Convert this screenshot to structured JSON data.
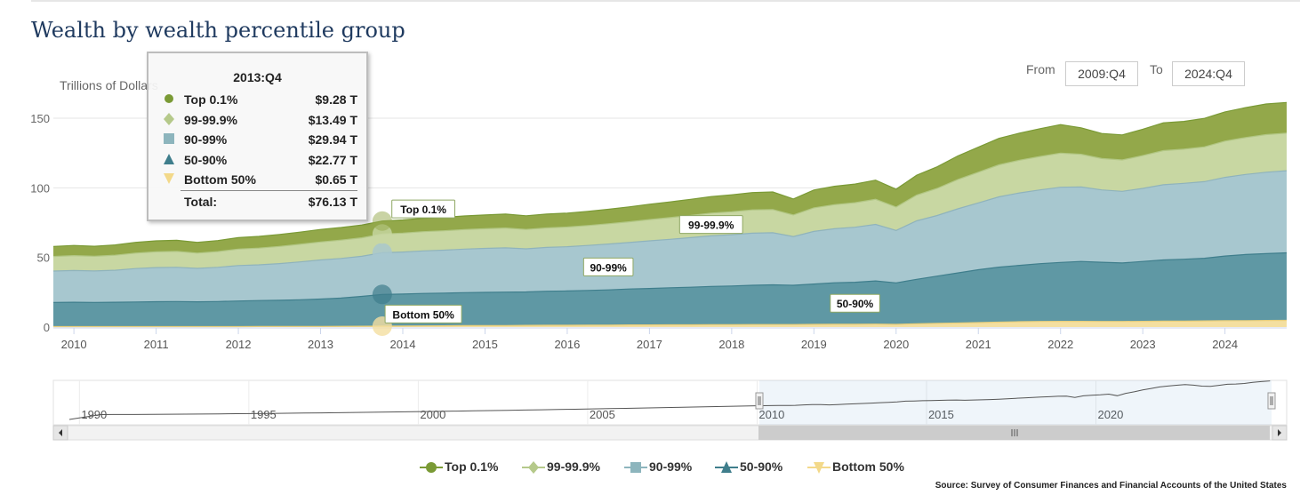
{
  "title": "Wealth by wealth percentile group",
  "range_selector": {
    "from_label": "From",
    "from_value": "2009:Q4",
    "to_label": "To",
    "to_value": "2024:Q4"
  },
  "tooltip": {
    "header": "2013:Q4",
    "rows": [
      {
        "name": "Top 0.1%",
        "value": "$9.28 T"
      },
      {
        "name": "99-99.9%",
        "value": "$13.49 T"
      },
      {
        "name": "90-99%",
        "value": "$29.94 T"
      },
      {
        "name": "50-90%",
        "value": "$22.77 T"
      },
      {
        "name": "Bottom 50%",
        "value": "$0.65 T"
      }
    ],
    "total_label": "Total:",
    "total_value": "$76.13 T"
  },
  "legend": [
    "Top 0.1%",
    "99-99.9%",
    "90-99%",
    "50-90%",
    "Bottom 50%"
  ],
  "source": "Source: Survey of Consumer Finances and Financial Accounts of the United States",
  "colors": {
    "top01": "#93a84a",
    "p99_999": "#c8d7a2",
    "p90_99": "#a7c7cf",
    "p50_90": "#5f98a4",
    "bottom50": "#f4dfa0"
  },
  "chart_data": {
    "type": "area",
    "stacked": true,
    "ylabel": "Trillions of Dollars",
    "ylim": [
      0,
      160
    ],
    "yticks": [
      0,
      50,
      100,
      150
    ],
    "xlim": [
      2009.75,
      2024.75
    ],
    "xticks": [
      "2010",
      "2011",
      "2012",
      "2013",
      "2014",
      "2015",
      "2016",
      "2017",
      "2018",
      "2019",
      "2020",
      "2021",
      "2022",
      "2023",
      "2024"
    ],
    "x": [
      "2009:Q4",
      "2010:Q1",
      "2010:Q2",
      "2010:Q3",
      "2010:Q4",
      "2011:Q1",
      "2011:Q2",
      "2011:Q3",
      "2011:Q4",
      "2012:Q1",
      "2012:Q2",
      "2012:Q3",
      "2012:Q4",
      "2013:Q1",
      "2013:Q2",
      "2013:Q3",
      "2013:Q4",
      "2014:Q1",
      "2014:Q2",
      "2014:Q3",
      "2014:Q4",
      "2015:Q1",
      "2015:Q2",
      "2015:Q3",
      "2015:Q4",
      "2016:Q1",
      "2016:Q2",
      "2016:Q3",
      "2016:Q4",
      "2017:Q1",
      "2017:Q2",
      "2017:Q3",
      "2017:Q4",
      "2018:Q1",
      "2018:Q2",
      "2018:Q3",
      "2018:Q4",
      "2019:Q1",
      "2019:Q2",
      "2019:Q3",
      "2019:Q4",
      "2020:Q1",
      "2020:Q2",
      "2020:Q3",
      "2020:Q4",
      "2021:Q1",
      "2021:Q2",
      "2021:Q3",
      "2021:Q4",
      "2022:Q1",
      "2022:Q2",
      "2022:Q3",
      "2022:Q4",
      "2023:Q1",
      "2023:Q2",
      "2023:Q3",
      "2023:Q4",
      "2024:Q1",
      "2024:Q2",
      "2024:Q3",
      "2024:Q4"
    ],
    "series": [
      {
        "name": "Bottom 50%",
        "values": [
          0.3,
          0.3,
          0.3,
          0.3,
          0.3,
          0.3,
          0.3,
          0.3,
          0.3,
          0.3,
          0.4,
          0.4,
          0.4,
          0.4,
          0.5,
          0.6,
          0.65,
          0.7,
          0.8,
          0.9,
          1.0,
          1.1,
          1.1,
          1.2,
          1.3,
          1.3,
          1.4,
          1.4,
          1.5,
          1.5,
          1.6,
          1.6,
          1.7,
          1.7,
          1.8,
          1.8,
          1.8,
          1.9,
          2.0,
          2.0,
          2.1,
          1.9,
          2.3,
          2.6,
          2.9,
          3.2,
          3.5,
          3.8,
          4.0,
          4.1,
          4.1,
          4.0,
          4.0,
          4.1,
          4.2,
          4.2,
          4.4,
          4.5,
          4.6,
          4.7,
          4.8
        ]
      },
      {
        "name": "50-90%",
        "values": [
          17.4,
          17.5,
          17.4,
          17.5,
          17.7,
          17.9,
          18.0,
          17.8,
          18.0,
          18.4,
          18.6,
          18.8,
          19.2,
          19.7,
          20.3,
          21.4,
          22.77,
          23.0,
          23.3,
          23.5,
          23.7,
          23.8,
          24.0,
          24.0,
          24.4,
          24.6,
          24.9,
          25.3,
          25.8,
          26.2,
          26.6,
          27.0,
          27.5,
          27.8,
          28.2,
          28.5,
          28.2,
          29.0,
          29.8,
          30.2,
          31.0,
          29.8,
          32.0,
          34.0,
          36.0,
          38.0,
          39.5,
          40.5,
          41.5,
          42.3,
          43.0,
          42.5,
          42.0,
          43.0,
          44.0,
          44.5,
          45.0,
          46.5,
          47.5,
          48.0,
          48.5
        ]
      },
      {
        "name": "90-99%",
        "values": [
          22.5,
          22.8,
          22.6,
          23.0,
          24.0,
          24.5,
          24.6,
          24.0,
          24.6,
          25.5,
          25.7,
          26.4,
          27.2,
          28.1,
          28.5,
          28.8,
          29.94,
          30.2,
          30.6,
          30.8,
          31.3,
          31.6,
          31.8,
          31.0,
          31.5,
          31.8,
          32.3,
          32.9,
          33.4,
          34.2,
          34.8,
          35.6,
          36.3,
          36.8,
          37.4,
          37.4,
          35.0,
          37.8,
          38.8,
          39.5,
          40.6,
          37.7,
          42.0,
          43.5,
          46.0,
          48.0,
          50.5,
          52.0,
          53.0,
          54.0,
          53.5,
          52.0,
          51.5,
          52.5,
          54.0,
          54.5,
          55.0,
          56.5,
          57.5,
          58.5,
          59.0
        ]
      },
      {
        "name": "99-99.9%",
        "values": [
          10.5,
          10.7,
          10.5,
          10.8,
          11.1,
          11.3,
          11.4,
          11.0,
          11.3,
          11.8,
          12.0,
          12.3,
          12.6,
          12.9,
          13.1,
          13.3,
          13.49,
          13.6,
          13.8,
          13.9,
          14.0,
          14.1,
          14.2,
          13.9,
          14.0,
          14.1,
          14.3,
          14.6,
          14.9,
          15.3,
          15.6,
          15.9,
          16.3,
          16.5,
          16.7,
          16.7,
          15.5,
          16.9,
          17.3,
          17.6,
          18.0,
          16.8,
          18.5,
          19.5,
          21.0,
          22.0,
          23.0,
          23.5,
          24.0,
          24.5,
          23.5,
          22.5,
          22.5,
          23.5,
          24.5,
          24.5,
          25.0,
          26.0,
          26.5,
          27.0,
          27.0
        ]
      },
      {
        "name": "Top 0.1%",
        "values": [
          7.2,
          7.3,
          7.2,
          7.4,
          7.7,
          7.9,
          8.0,
          7.7,
          7.9,
          8.2,
          8.4,
          8.6,
          8.8,
          9.0,
          9.1,
          9.2,
          9.28,
          9.4,
          9.6,
          9.7,
          9.8,
          9.9,
          10.0,
          9.8,
          9.9,
          10.0,
          10.2,
          10.4,
          10.7,
          11.0,
          11.3,
          11.6,
          11.9,
          12.2,
          12.5,
          12.6,
          11.5,
          12.8,
          13.2,
          13.4,
          13.8,
          12.8,
          14.2,
          15.5,
          17.0,
          18.0,
          19.0,
          19.5,
          20.0,
          20.5,
          19.0,
          18.0,
          18.0,
          19.0,
          20.0,
          20.0,
          20.5,
          21.0,
          21.5,
          22.0,
          22.0
        ]
      }
    ],
    "annotations": [
      {
        "text": "Top 0.1%",
        "x": "2014:Q2"
      },
      {
        "text": "90-99%",
        "x": "2016:Q3"
      },
      {
        "text": "99-99.9%",
        "x": "2017:Q4"
      },
      {
        "text": "50-90%",
        "x": "2019:Q3"
      },
      {
        "text": "Bottom 50%",
        "x": "2014:Q2"
      }
    ],
    "navigator": {
      "xticks": [
        "1990",
        "1995",
        "2000",
        "2005",
        "2010",
        "2015",
        "2020"
      ],
      "selected_from": "2009:Q4",
      "selected_to": "2024:Q4"
    },
    "grid": true,
    "legend_position": "bottom"
  }
}
